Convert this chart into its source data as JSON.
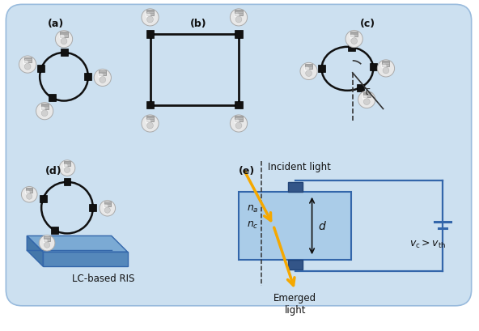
{
  "bg_color": "#cce0f0",
  "bg_border_color": "#99bbdd",
  "label_a": "(a)",
  "label_b": "(b)",
  "label_c": "(c)",
  "label_d": "(d)",
  "label_e": "(e)",
  "lc_fill": "#aacce8",
  "lc_border": "#4477aa",
  "circuit_color": "#3366aa",
  "arrow_color": "#f5a800",
  "text_color": "#111111",
  "blue_platform_top": "#6699cc",
  "blue_platform_side": "#4466aa",
  "blue_platform_front": "#5577bb"
}
